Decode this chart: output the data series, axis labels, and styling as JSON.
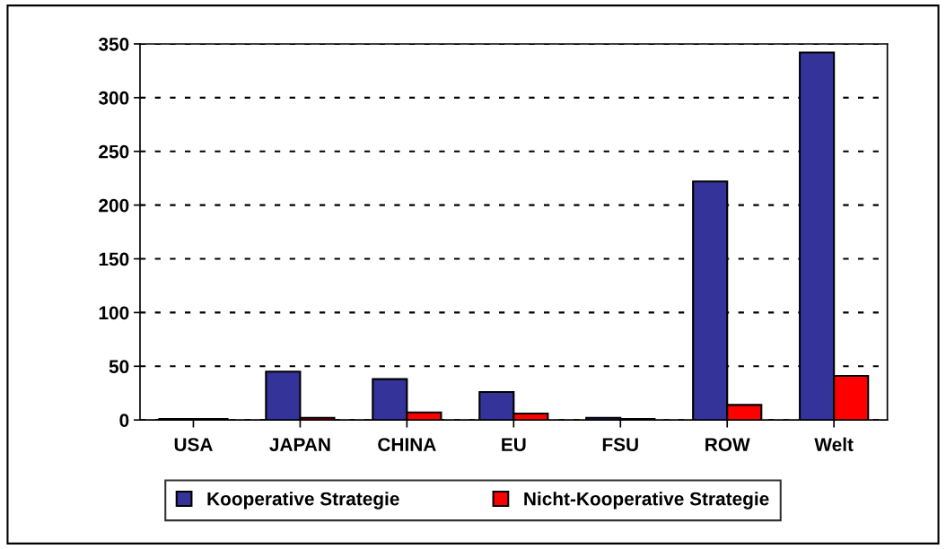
{
  "chart_data": {
    "type": "bar",
    "categories": [
      "USA",
      "JAPAN",
      "CHINA",
      "EU",
      "FSU",
      "ROW",
      "Welt"
    ],
    "series": [
      {
        "name": "Kooperative Strategie",
        "color": "#333399",
        "values": [
          1,
          45,
          38,
          26,
          2,
          222,
          342
        ]
      },
      {
        "name": "Nicht-Kooperative Strategie",
        "color": "#ff0000",
        "values": [
          1,
          2,
          7,
          6,
          1,
          14,
          41
        ]
      }
    ],
    "ylim": [
      0,
      350
    ],
    "yticks": [
      0,
      50,
      100,
      150,
      200,
      250,
      300,
      350
    ],
    "grid": "y",
    "legend": "bottom"
  }
}
